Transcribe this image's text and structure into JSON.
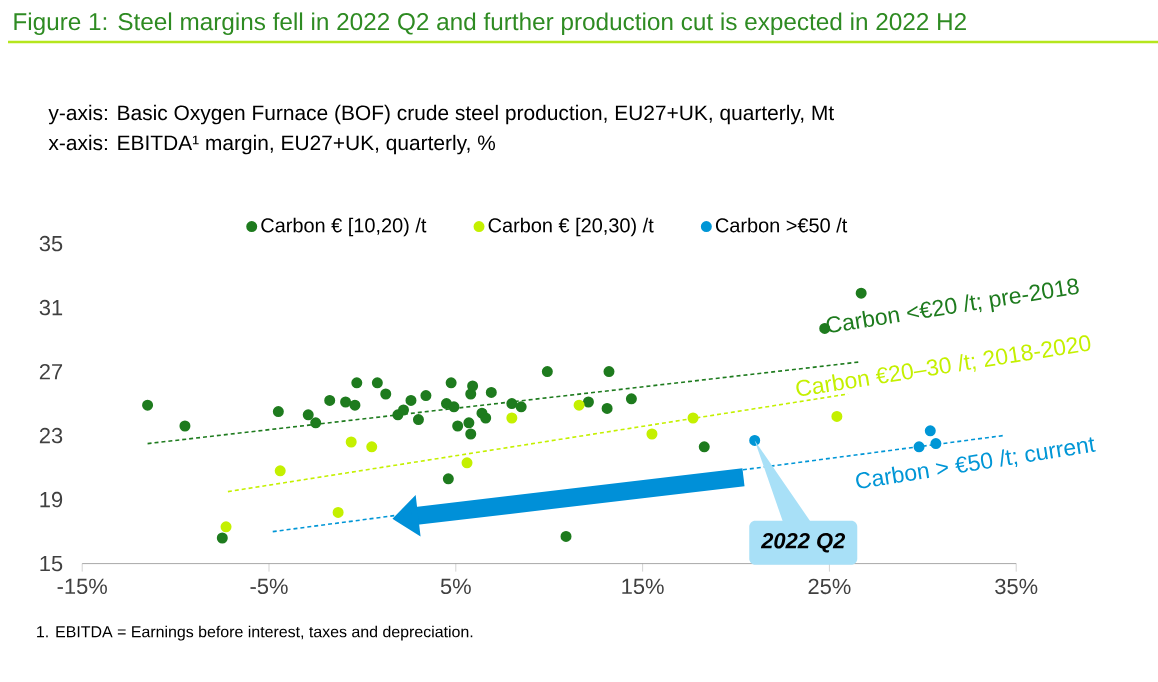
{
  "chart_data": {
    "type": "scatter",
    "title": "Figure 1: Steel margins fell in 2022 Q2 and further production cut is expected in 2022 H2",
    "xlim": [
      -15,
      35
    ],
    "ylim": [
      15,
      35
    ],
    "xticks": [
      {
        "value": -15,
        "label": "-15%"
      },
      {
        "value": -5,
        "label": "-5%"
      },
      {
        "value": 5,
        "label": "5%"
      },
      {
        "value": 15,
        "label": "15%"
      },
      {
        "value": 25,
        "label": "25%"
      },
      {
        "value": 35,
        "label": "35%"
      }
    ],
    "yticks": [
      15,
      19,
      23,
      27,
      31,
      35
    ],
    "legend": "top",
    "grid": false,
    "marker": "circle",
    "series": [
      {
        "name": "Carbon € [10,20) /t",
        "color": "#1e7b1e",
        "x": [
          -11.5,
          -9.5,
          -7.5,
          -4.5,
          -2.9,
          -2.5,
          -1.75,
          -0.9,
          -0.4,
          -0.3,
          0.8,
          1.25,
          1.9,
          2.2,
          2.6,
          3.0,
          3.4,
          4.5,
          4.75,
          4.9,
          5.1,
          4.6,
          5.7,
          5.8,
          5.8,
          5.9,
          6.4,
          6.6,
          6.9,
          8.0,
          8.5,
          9.9,
          10.9,
          12.1,
          13.2,
          13.1,
          14.4,
          18.3,
          24.75,
          26.7
        ],
        "values": [
          24.9,
          23.6,
          16.6,
          24.5,
          24.3,
          23.8,
          25.2,
          25.1,
          24.9,
          26.3,
          26.3,
          25.6,
          24.3,
          24.6,
          25.2,
          24.0,
          25.5,
          25.0,
          26.3,
          24.8,
          23.6,
          20.3,
          23.8,
          23.1,
          25.6,
          26.1,
          24.4,
          24.1,
          25.7,
          25.0,
          24.8,
          27.0,
          16.7,
          25.1,
          27.0,
          24.7,
          25.3,
          22.3,
          29.7,
          31.9
        ]
      },
      {
        "name": "Carbon € [20,30) /t",
        "color": "#c4f000",
        "x": [
          -7.3,
          -4.4,
          -0.6,
          -1.3,
          0.5,
          5.6,
          8.0,
          11.6,
          15.5,
          17.7,
          25.4
        ],
        "values": [
          17.3,
          20.8,
          22.6,
          18.2,
          22.3,
          21.3,
          24.1,
          24.9,
          23.1,
          24.1,
          24.2
        ]
      },
      {
        "name": "Carbon >€50 /t",
        "color": "#0096d6",
        "x": [
          21.0,
          29.8,
          30.4,
          30.7
        ],
        "values": [
          22.7,
          22.3,
          23.3,
          22.5
        ]
      },
      {
        "type": "line",
        "line_style": "dashed",
        "marker": "none",
        "color": "#1e7b1e",
        "x": [
          -11.5,
          26.6
        ],
        "values": [
          22.5,
          27.6
        ]
      },
      {
        "type": "line",
        "line_style": "dashed",
        "marker": "none",
        "color": "#c4f000",
        "x": [
          -7.2,
          26
        ],
        "values": [
          19.5,
          25.6
        ]
      },
      {
        "type": "line",
        "line_style": "dashed",
        "marker": "none",
        "color": "#0096d6",
        "x": [
          -4.8,
          34.3
        ],
        "values": [
          17.0,
          23.0
        ]
      }
    ],
    "annotations": [
      "y-axis: Basic Oxygen Furnace (BOF) crude steel production, EU27+UK, quarterly, Mt",
      "x-axis: EBITDA¹ margin, EU27+UK, quarterly, %",
      "Carbon <€20 /t; pre-2018",
      "Carbon €20–30 /t; 2018-2020",
      "Carbon > €50 /t; current",
      "2022 Q2",
      "1. EBITDA = Earnings before interest, taxes and depreciation."
    ]
  }
}
